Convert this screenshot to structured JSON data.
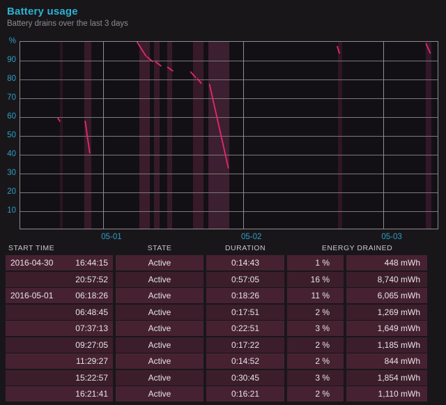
{
  "header": {
    "title": "Battery usage",
    "subtitle": "Battery drains over the last 3 days"
  },
  "colors": {
    "accent_cyan": "#2bb3d4",
    "axis_cyan": "#2ba0c4",
    "drain_line": "#e6296b",
    "row_odd": "#462231",
    "row_even": "#3c1e2b",
    "grid": "#7b797a",
    "plot_bg": "#131015"
  },
  "chart_data": {
    "type": "line",
    "title": "Battery usage",
    "ylabel": "%",
    "ylim": [
      0,
      100
    ],
    "y_ticks": [
      90,
      80,
      70,
      60,
      50,
      40,
      30,
      20,
      10
    ],
    "x_ticks": [
      "05-01",
      "05-02",
      "05-03"
    ],
    "x_tick_pos": [
      0.198,
      0.532,
      0.867
    ],
    "grid": true,
    "series_note": "battery charge %, drain segments over 3 days; x = fraction of time axis (04-30 to 05-03)",
    "segments": [
      {
        "x1": 0.0897,
        "y1": 59.6,
        "x2": 0.0947,
        "y2": 57.8
      },
      {
        "x1": 0.155,
        "y1": 57.8,
        "x2": 0.166,
        "y2": 41.0
      },
      {
        "x1": 0.279,
        "y1": 100.0,
        "x2": 0.3,
        "y2": 92.5
      },
      {
        "x1": 0.303,
        "y1": 92.0,
        "x2": 0.316,
        "y2": 89.5
      },
      {
        "x1": 0.324,
        "y1": 89.3,
        "x2": 0.336,
        "y2": 87.2
      },
      {
        "x1": 0.352,
        "y1": 86.5,
        "x2": 0.364,
        "y2": 84.6
      },
      {
        "x1": 0.407,
        "y1": 84.0,
        "x2": 0.419,
        "y2": 81.0
      },
      {
        "x1": 0.424,
        "y1": 80.3,
        "x2": 0.432,
        "y2": 78.0
      },
      {
        "x1": 0.452,
        "y1": 77.3,
        "x2": 0.497,
        "y2": 33.0
      },
      {
        "x1": 0.757,
        "y1": 97.5,
        "x2": 0.762,
        "y2": 94.0
      },
      {
        "x1": 0.969,
        "y1": 99.0,
        "x2": 0.979,
        "y2": 94.0
      }
    ],
    "active_bands": [
      {
        "x1": 0.094,
        "x2": 0.101,
        "color": "#2b1520"
      },
      {
        "x1": 0.153,
        "x2": 0.17,
        "color": "#371a29"
      },
      {
        "x1": 0.285,
        "x2": 0.31,
        "color": "#3b1c2c"
      },
      {
        "x1": 0.32,
        "x2": 0.333,
        "color": "#371a29"
      },
      {
        "x1": 0.351,
        "x2": 0.363,
        "color": "#371a29"
      },
      {
        "x1": 0.413,
        "x2": 0.438,
        "color": "#371a29"
      },
      {
        "x1": 0.449,
        "x2": 0.5,
        "color": "#3c1f30"
      },
      {
        "x1": 0.758,
        "x2": 0.768,
        "color": "#2e1622"
      },
      {
        "x1": 0.968,
        "x2": 0.982,
        "color": "#31182a"
      }
    ]
  },
  "table": {
    "headers": {
      "start_time": "START TIME",
      "state": "STATE",
      "duration": "DURATION",
      "energy_drained": "ENERGY DRAINED"
    },
    "rows": [
      {
        "date": "2016-04-30",
        "time": "16:44:15",
        "state": "Active",
        "duration": "0:14:43",
        "percent": "1 %",
        "energy": "448 mWh"
      },
      {
        "date": "",
        "time": "20:57:52",
        "state": "Active",
        "duration": "0:57:05",
        "percent": "16 %",
        "energy": "8,740 mWh"
      },
      {
        "date": "2016-05-01",
        "time": "06:18:26",
        "state": "Active",
        "duration": "0:18:26",
        "percent": "11 %",
        "energy": "6,065 mWh"
      },
      {
        "date": "",
        "time": "06:48:45",
        "state": "Active",
        "duration": "0:17:51",
        "percent": "2 %",
        "energy": "1,269 mWh"
      },
      {
        "date": "",
        "time": "07:37:13",
        "state": "Active",
        "duration": "0:22:51",
        "percent": "3 %",
        "energy": "1,649 mWh"
      },
      {
        "date": "",
        "time": "09:27:05",
        "state": "Active",
        "duration": "0:17:22",
        "percent": "2 %",
        "energy": "1,185 mWh"
      },
      {
        "date": "",
        "time": "11:29:27",
        "state": "Active",
        "duration": "0:14:52",
        "percent": "2 %",
        "energy": "844 mWh"
      },
      {
        "date": "",
        "time": "15:22:57",
        "state": "Active",
        "duration": "0:30:45",
        "percent": "3 %",
        "energy": "1,854 mWh"
      },
      {
        "date": "",
        "time": "16:21:41",
        "state": "Active",
        "duration": "0:16:21",
        "percent": "2 %",
        "energy": "1,110 mWh"
      }
    ]
  }
}
